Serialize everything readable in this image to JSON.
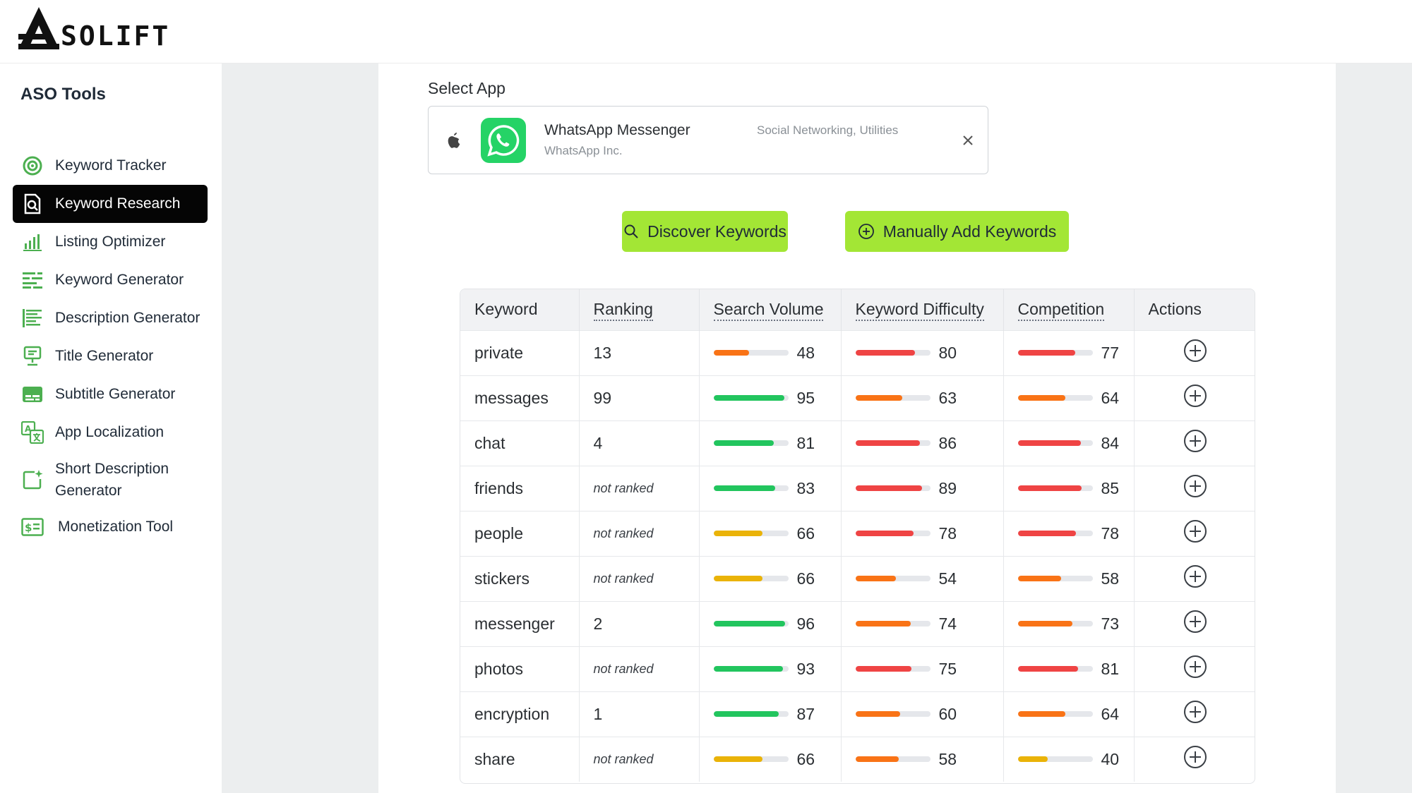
{
  "brand": {
    "logo_letter": "A",
    "logo_text": "SOLIFT"
  },
  "sidebar": {
    "title": "ASO Tools",
    "items": [
      {
        "label": "Keyword Tracker",
        "icon": "target-icon",
        "active": false
      },
      {
        "label": "Keyword Research",
        "icon": "magnify-document-icon",
        "active": true
      },
      {
        "label": "Listing Optimizer",
        "icon": "bar-chart-icon",
        "active": false
      },
      {
        "label": "Keyword Generator",
        "icon": "text-lines-icon",
        "active": false
      },
      {
        "label": "Description Generator",
        "icon": "paragraph-icon",
        "active": false
      },
      {
        "label": "Title Generator",
        "icon": "presentation-icon",
        "active": false
      },
      {
        "label": "Subtitle Generator",
        "icon": "subtitles-icon",
        "active": false
      },
      {
        "label": "App Localization",
        "icon": "translate-icon",
        "active": false
      },
      {
        "label": "Short Description Generator",
        "label_line1": "Short Description",
        "label_line2": "Generator",
        "icon": "sparkle-square-icon",
        "active": false
      },
      {
        "label": "Monetization Tool",
        "icon": "dollar-card-icon",
        "active": false
      }
    ]
  },
  "main": {
    "select_label": "Select App",
    "app": {
      "name": "WhatsApp Messenger",
      "categories": "Social Networking, Utilities",
      "developer": "WhatsApp Inc.",
      "platform_icon": "apple-icon",
      "app_icon": "whatsapp-icon"
    },
    "buttons": {
      "discover": "Discover Keywords",
      "manual": "Manually Add Keywords"
    },
    "table": {
      "headers": [
        "Keyword",
        "Ranking",
        "Search Volume",
        "Keyword Difficulty",
        "Competition",
        "Actions"
      ],
      "rows": [
        {
          "keyword": "private",
          "ranking": "13",
          "search_volume": 48,
          "difficulty": 80,
          "competition": 77
        },
        {
          "keyword": "messages",
          "ranking": "99",
          "search_volume": 95,
          "difficulty": 63,
          "competition": 64
        },
        {
          "keyword": "chat",
          "ranking": "4",
          "search_volume": 81,
          "difficulty": 86,
          "competition": 84
        },
        {
          "keyword": "friends",
          "ranking": "not ranked",
          "search_volume": 83,
          "difficulty": 89,
          "competition": 85
        },
        {
          "keyword": "people",
          "ranking": "not ranked",
          "search_volume": 66,
          "difficulty": 78,
          "competition": 78
        },
        {
          "keyword": "stickers",
          "ranking": "not ranked",
          "search_volume": 66,
          "difficulty": 54,
          "competition": 58
        },
        {
          "keyword": "messenger",
          "ranking": "2",
          "search_volume": 96,
          "difficulty": 74,
          "competition": 73
        },
        {
          "keyword": "photos",
          "ranking": "not ranked",
          "search_volume": 93,
          "difficulty": 75,
          "competition": 81
        },
        {
          "keyword": "encryption",
          "ranking": "1",
          "search_volume": 87,
          "difficulty": 60,
          "competition": 64
        },
        {
          "keyword": "share",
          "ranking": "not ranked",
          "search_volume": 66,
          "difficulty": 58,
          "competition": 40
        }
      ]
    }
  },
  "colors": {
    "accent_green": "#a3e635",
    "bar_green": "#22c55e",
    "bar_yellow": "#eab308",
    "bar_orange": "#f97316",
    "bar_red": "#ef4444",
    "bar_track": "#e5e7eb",
    "nav_active": "#050505",
    "icon_green": "#4caf50"
  }
}
